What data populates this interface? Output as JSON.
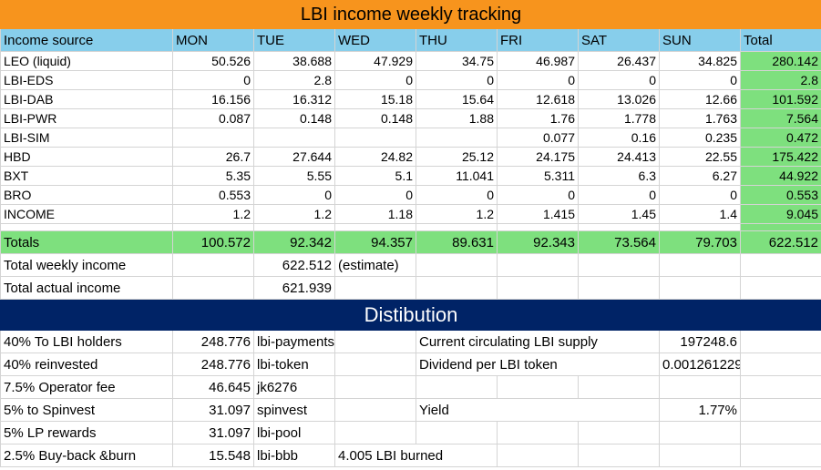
{
  "title": "LBI income weekly tracking",
  "headers": [
    "Income source",
    "MON",
    "TUE",
    "WED",
    "THU",
    "FRI",
    "SAT",
    "SUN",
    "Total"
  ],
  "rows": [
    {
      "source": "LEO (liquid)",
      "values": [
        "50.526",
        "38.688",
        "47.929",
        "34.75",
        "46.987",
        "26.437",
        "34.825"
      ],
      "total": "280.142"
    },
    {
      "source": "LBI-EDS",
      "values": [
        "0",
        "2.8",
        "0",
        "0",
        "0",
        "0",
        "0"
      ],
      "total": "2.8"
    },
    {
      "source": "LBI-DAB",
      "values": [
        "16.156",
        "16.312",
        "15.18",
        "15.64",
        "12.618",
        "13.026",
        "12.66"
      ],
      "total": "101.592"
    },
    {
      "source": "LBI-PWR",
      "values": [
        "0.087",
        "0.148",
        "0.148",
        "1.88",
        "1.76",
        "1.778",
        "1.763"
      ],
      "total": "7.564"
    },
    {
      "source": "LBI-SIM",
      "values": [
        "",
        "",
        "",
        "",
        "0.077",
        "0.16",
        "0.235"
      ],
      "total": "0.472"
    },
    {
      "source": "HBD",
      "values": [
        "26.7",
        "27.644",
        "24.82",
        "25.12",
        "24.175",
        "24.413",
        "22.55"
      ],
      "total": "175.422"
    },
    {
      "source": "BXT",
      "values": [
        "5.35",
        "5.55",
        "5.1",
        "11.041",
        "5.311",
        "6.3",
        "6.27"
      ],
      "total": "44.922"
    },
    {
      "source": "BRO",
      "values": [
        "0.553",
        "0",
        "0",
        "0",
        "0",
        "0",
        "0"
      ],
      "total": "0.553"
    },
    {
      "source": "INCOME",
      "values": [
        "1.2",
        "1.2",
        "1.18",
        "1.2",
        "1.415",
        "1.45",
        "1.4"
      ],
      "total": "9.045"
    }
  ],
  "totals": {
    "label": "Totals",
    "values": [
      "100.572",
      "92.342",
      "94.357",
      "89.631",
      "92.343",
      "73.564",
      "79.703"
    ],
    "total": "622.512"
  },
  "weekly": {
    "label": "Total weekly income",
    "value": "622.512",
    "note": "(estimate)"
  },
  "actual": {
    "label": "Total actual income",
    "value": "621.939"
  },
  "distribution": {
    "title": "Distibution",
    "items": [
      {
        "label": "40% To LBI holders",
        "value": "248.776",
        "account": "lbi-payments"
      },
      {
        "label": "40% reinvested",
        "value": "248.776",
        "account": "lbi-token"
      },
      {
        "label": "7.5% Operator fee",
        "value": "46.645",
        "account": "jk6276"
      },
      {
        "label": "5% to Spinvest",
        "value": "31.097",
        "account": "spinvest"
      },
      {
        "label": "5% LP rewards",
        "value": "31.097",
        "account": "lbi-pool"
      },
      {
        "label": "2.5% Buy-back &burn",
        "value": "15.548",
        "account": "lbi-bbb"
      }
    ],
    "burned": "4.005 LBI burned",
    "supply_label": "Current circulating LBI supply",
    "supply_value": "197248.6",
    "dividend_label": "Dividend per LBI token",
    "dividend_value": "0.001261229",
    "yield_label": "Yield",
    "yield_value": "1.77%"
  },
  "colors": {
    "title_bg": "#f7941d",
    "header_bg": "#87ceeb",
    "totals_bg": "#7ee07e",
    "dist_bg": "#002366"
  }
}
